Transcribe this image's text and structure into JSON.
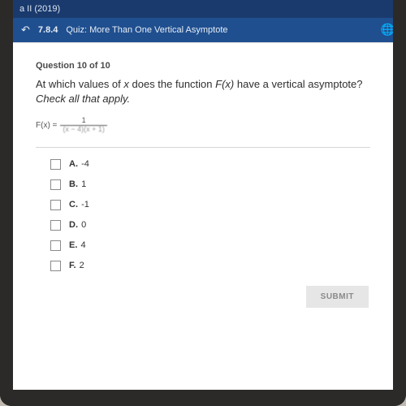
{
  "colors": {
    "device_bezel": "#2b2a28",
    "body_bg": "#bfb9b1",
    "header_bg": "#1a3a6e",
    "quizbar_bg": "#1f4f8f",
    "text_default": "#2f2f2f",
    "divider": "#d7d7d7",
    "submit_bg": "#e6e6e6",
    "submit_text": "#8a8a8a"
  },
  "header": {
    "course": "a II (2019)"
  },
  "quizbar": {
    "code": "7.8.4",
    "label_prefix": "Quiz:",
    "title": "More Than One Vertical Asymptote"
  },
  "question": {
    "number_label": "Question 10 of 10",
    "prompt_pre": "At which values of ",
    "prompt_var": "x",
    "prompt_mid": " does the function ",
    "prompt_fn": "F(x)",
    "prompt_post": " have a vertical asymptote? ",
    "prompt_hint": "Check all that apply.",
    "formula_lhs": "F(x) =",
    "formula_numerator": "1",
    "formula_denominator": "(x − 4)(x + 1)"
  },
  "choices": [
    {
      "letter": "A.",
      "value": "-4"
    },
    {
      "letter": "B.",
      "value": "1"
    },
    {
      "letter": "C.",
      "value": "-1"
    },
    {
      "letter": "D.",
      "value": "0"
    },
    {
      "letter": "E.",
      "value": "4"
    },
    {
      "letter": "F.",
      "value": "2"
    }
  ],
  "submit_label": "SUBMIT"
}
